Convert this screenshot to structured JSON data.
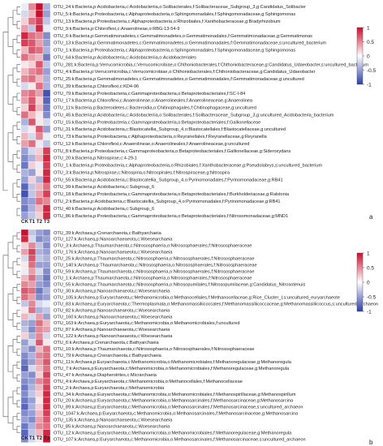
{
  "colors": {
    "low": "#2f3fa8",
    "mid": "#ffffff",
    "high": "#c8102e"
  },
  "panels": [
    {
      "label": "a",
      "legend_ticks": [
        "1",
        "0.5",
        "0",
        "-0.5",
        "-1"
      ],
      "columns": [
        "CK",
        "T1",
        "T2",
        "T3"
      ],
      "rows": [
        "OTU_24:k:Bacteria,p:Acidobacteria,c:Acidobacteriia,o:Solibacterales,f:Solibacteraceae_Subgroup_3,g:Candidatus_Solibacter",
        "OTU_5:k:Bacteria,p:Proteobacteria,c:Alphaproteobacteria,o:Sphingomonadales,f:Sphingomonadaceae,g:Sphingomonas",
        "OTU_13:k:Bacteria,p:Proteobacteria,c:Alphaproteobacteria,o:Rhizobiales,f:Xanthobacteraceae,g:Bradyrhizobium",
        "OTU_9:k:Bacteria,p:Chloroflexi,c:Anaerolineae,o:RBG-13-54-9",
        "OTU_6:k:Bacteria,p:Gemmatimonadetes,c:Gemmatimonadetes,o:Gemmatimonadales,f:Gemmatimonadaceae,g:Gemmatimonas",
        "OTU_13:k:Bacteria,p:Gemmatimonadetes,c:Gemmatimonadetes,o:Gemmatimonadales,f:Gemmatimonadaceae,s:uncultured_bacterium",
        "OTU_1:k:Bacteria,p:Proteobacteria,c:Alphaproteobacteria,o:Sphingomonadales,f:Sphingomonadaceae,g:Sphingomonas",
        "OTU_64:k:Bacteria,p:Acidobacteria,c:Acidobacteriia,o:Acidobacteriales",
        "OTU_281:k:Bacteria,p:Verrucomicrobia,c:Verrucomicrobiae,o:Chthoniobacterales,f:Chthoniobacteraceae,g:Candidatus_Udaeobacter,s:uncultured_bacterium",
        "OTU_4:k:Bacteria,p:Verrucomicrobia,c:Verrucomicrobiae,o:Chthoniobacterales,f:Chthoniobacteraceae,g:Candidatus_Udaeobacter",
        "OTU_25:k:Bacteria,p:Gemmatimonadetes,c:Gemmatimonadetes,o:Gemmatimonadales,f:Gemmatimonadaceae,g:uncultured",
        "OTU_39:k:Bacteria,p:Chloroflexi,c:KD4-96",
        "OTU_79:k:Bacteria,p:Proteobacteria,c:Gammaproteobacteria,o:Betaproteobacteriales,f:SC-I-84",
        "OTU_17:k:Bacteria,p:Chloroflexi,c:Anaerolineae,o:Anaerolineales,f:Anaerolineaceae,g:Anaerolinea",
        "OTU_11:k:Bacteria,p:Bacteroidetes,c:Bacteroidia,o:Chitinophagales,f:Chitinophagaceae,g:uncultured",
        "OTU_45:k:Bacteria,p:Acidobacteria,c:Acidobacteriia,o:Solibacterales,f:Solibacteraceae_Subgroup_3,g:uncultured_Acidobacteria_bacterium",
        "OTU_15:k:Bacteria,p:Proteobacteria,c:Gammaproteobacteria,o:Betaproteobacteriales,f:Gallionellaceae",
        "OTU_31:k:Bacteria,p:Acidobacteria,c:Blastocatellia_Subgroup_4,o:Blastocatellales,f:Blastocatellaceae,g:uncultured",
        "OTU_73:k:Bacteria,p:Proteobacteria,c:Alphaproteobacteria,o:Reyranellales,f:Reyranellaceae,g:Reyranella",
        "OTU_12:k:Bacteria,p:Chloroflexi,c:Anaerolineae,o:Anaerolineales,f:Anaerolineaceae,g:uncultured",
        "OTU_8:k:Bacteria,p:Proteobacteria,c:Gammaproteobacteria,o:Betaproteobacteriales,f:Gallionellaceae,g:Sideroxydans",
        "OTU_20:k:Bacteria,p:Nitrospirae,c:4-29-1",
        "OTU_1:k:Bacteria,p:Proteobacteria,c:Alphaproteobacteria,o:Rhizobiales,f:Xanthobacteraceae,g:Pseudolabrys,s:uncultured_bacterium",
        "OTU_3:k:Bacteria,p:Nitrospirae,c:Nitrospiria,o:Nitrospirales,f:Nitrospiraceae,g:Nitrospira",
        "OTU_55:k:Bacteria,p:Acidobacteria,c:Blastocatellia_Subgroup_4,o:Pyrinomonadales,f:Pyrinomonadaceae,g:RB41",
        "OTU_99:k:Bacteria,p:Acidobacteria,c:Subgroup_6",
        "OTU_18:k:Bacteria,p:Proteobacteria,c:Gammaproteobacteria,o:Betaproteobacteriales,f:Burkholderiaceae,g:Ralstonia",
        "OTU_2:k:Bacteria,p:Acidobacteria,c:Blastocatellia_Subgroup_4,o:Pyrinomonadales,f:Pyrinomonadaceae,g:RB41",
        "OTU_40:k:Bacteria,p:Acidobacteria,c:Subgroup_6",
        "OTU_86:k:Bacteria,p:Proteobacteria,c:Gammaproteobacteria,o:Betaproteobacteriales,f:Nitrosomonadaceae,g:MND1"
      ]
    },
    {
      "label": "b",
      "legend_ticks": [
        "1",
        "0.5",
        "0",
        "-0.5",
        "-1"
      ],
      "columns": [
        "CK",
        "T1",
        "T2",
        "T3"
      ],
      "rows": [
        "OTU_39:k:Archaea,p:Crenarchaeota,c:Bathyarchaeia",
        "OTU_127:k:Archaea,p:Nanoarchaeaeota,c:Woesearchaeia",
        "OTU_3:k:Archaea,p:Thaumarchaeota,c:Nitrososphaeria,o:Nitrososphaerales,f:Nitrososphaeraceae",
        "OTU_176:k:Archaea,p:Nanoarchaeaeota,c:Woesearchaeia",
        "OTU_25:k:Archaea,p:Thaumarchaeota,c:Nitrososphaeria,o:Nitrososphaerales,f:Nitrososphaeraceae",
        "OTU_140:k:Archaea,p:Thaumarchaeota,c:Nitrososphaeria,o:Nitrososphaerales,f:Nitrososphaeraceae",
        "OTU_59:k:Archaea,p:Thaumarchaeota,c:Nitrososphaeria,o:Nitrososphaerales,f:Nitrososphaeraceae",
        "OTU_1:k:Archaea,p:Thaumarchaeota,c:Nitrososphaeria,o:Nitrososphaerales,f:Nitrososphaeraceae",
        "OTU_55:k:Archaea,p:Thaumarchaeota,c:Nitrososphaeria,o:Nitrosopumilales,f:Nitrosopumilaceae,g:Candidatus_Nitrosotenuis",
        "OTU_30:k:Archaea,p:Nanoarchaeaeota,c:Woesearchaeia",
        "OTU_105:k:Archaea,p:Euryarchaeota,c:Methanomicrobia,o:Methanocellales,f:Methanocellaceae,g:Rice_Cluster_I,s:uncultured_euryarchaeote",
        "OTU_83:k:Archaea,p:Euryarchaeota,c:Thermoplasmata,o:Methanomassiliicoccales,f:Methanomassiliicoccaceae,g:Methanomassiliicoccus,s:uncultured_archaeon",
        "OTU_82:k:Archaea,p:Nanoarchaeaeota,c:Woesearchaeia",
        "OTU_160:k:Archaea,p:Nanoarchaeaeota,c:Woesearchaeia",
        "OTU_163:k:Archaea,p:Euryarchaeota,c:Methanomicrobia,o:Methanomicrobiales,f:uncultured",
        "OTU_87:k:Archaea,p:Nanoarchaeaeota,c:Woesearchaeia",
        "OTU_122:k:Archaea,p:Nanoarchaeaeota,c:Woesearchaeia",
        "OTU_6:k:Archaea,p:Crenarchaeota,c:Bathyarchaeia",
        "OTU_10:k:Archaea,p:Thaumarchaeota,c:Nitrososphaeria,o:Nitrososphaerales,f:Nitrososphaeraceae",
        "OTU_79:k:Archaea,p:Crenarchaeota,c:Bathyarchaeia",
        "OTU_11:k:Archaea,p:Euryarchaeota,c:Methanomicrobia,o:Methanomicrobiales,f:Methanoregulaceae,g:Methanoregula",
        "OTU_7:k:Archaea,p:Euryarchaeota,c:Methanomicrobia,o:Methanomicrobiales,f:Methanoregulaceae,g:Methanoregula",
        "OTU_47:k:Archaea,p:Diapherotrites,c:Micrarchaeia",
        "OTU_4:k:Archaea,p:Euryarchaeota,c:Methanomicrobia,o:Methanocellales,f:Methanocellaceae",
        "OTU_2:k:Archaea,p:Euryarchaeota,c:Methanomicrobia",
        "OTU_34:k:Archaea,p:Euryarchaeota,c:Methanomicrobia,o:Methanomicrobiales,f:Methanospirillaceae,g:Methanospirillum",
        "OTU_20:k:Archaea,p:Euryarchaeota,c:Methanomicrobia,o:Methanosarcinales,f:Methanosarcinaceae,g:Methanosarcina",
        "OTU_89:k:Archaea,p:Euryarchaeota,c:Methanomicrobia,o:Methanosarcinales,f:Methanosarcinaceae,s:uncultured_archaeon",
        "OTU_1047:k:Archaea,p:Euryarchaeota,c:Methanomicrobia,o:Methanosarcinales,f:Methanosarcinaceae,g:Methanosarcina",
        "OTU_135:k:Archaea,p:Nanoarchaeaeota,c:Woesearchaeia",
        "OTU_85:k:Archaea,p:Nanoarchaeaeota,c:Woesearchaeia",
        "OTU_12:k:Archaea,p:Euryarchaeota,c:Methanomicrobia,o:Methanomicrobiales,f:Methanoregulaceae,g:Methanoregula",
        "OTU_107:k:Archaea,p:Euryarchaeota,c:Methanomicrobia,o:Methanosarcinales,f:Methanosarcinaceae,s:uncultured_archaeon"
      ]
    }
  ],
  "chart_data": [
    {
      "type": "heatmap",
      "columns": [
        "CK",
        "T1",
        "T2",
        "T3"
      ],
      "color_scale": [
        -1,
        1
      ],
      "colorbar_ticks": [
        1,
        0.5,
        0,
        -0.5,
        -1
      ],
      "values": [
        [
          -0.1,
          0.5,
          1.0,
          -0.4
        ],
        [
          -0.2,
          0.3,
          1.0,
          -0.5
        ],
        [
          0.2,
          0.6,
          0.8,
          -0.3
        ],
        [
          0.4,
          -0.3,
          0.9,
          -0.1
        ],
        [
          0.9,
          0.6,
          0.5,
          -0.6
        ],
        [
          0.8,
          0.7,
          0.4,
          -0.5
        ],
        [
          0.3,
          0.7,
          0.6,
          -0.4
        ],
        [
          0.6,
          0.4,
          0.3,
          -0.7
        ],
        [
          0.1,
          0.2,
          0.7,
          -0.3
        ],
        [
          0.3,
          0.5,
          0.6,
          -0.5
        ],
        [
          0.5,
          0.6,
          0.3,
          -0.4
        ],
        [
          -0.2,
          0.1,
          0.6,
          -0.4
        ],
        [
          0.5,
          0.6,
          0.4,
          -0.9
        ],
        [
          0.4,
          0.7,
          0.2,
          -0.8
        ],
        [
          0.2,
          0.8,
          0.3,
          -0.7
        ],
        [
          0.6,
          0.3,
          0.1,
          -0.6
        ],
        [
          -0.4,
          0.7,
          0.1,
          -0.2
        ],
        [
          -0.2,
          0.1,
          0.7,
          -0.5
        ],
        [
          0.3,
          -0.2,
          0.5,
          -0.1
        ],
        [
          0.4,
          0.6,
          -0.1,
          -0.3
        ],
        [
          -0.5,
          -0.2,
          0.2,
          0.8
        ],
        [
          -0.6,
          -0.4,
          0.3,
          0.9
        ],
        [
          -0.7,
          0.2,
          -0.1,
          0.8
        ],
        [
          -0.4,
          -0.5,
          0.1,
          0.9
        ],
        [
          -0.5,
          0.2,
          -0.4,
          0.9
        ],
        [
          -0.8,
          -0.3,
          0.3,
          0.6
        ],
        [
          -0.9,
          -0.3,
          0.4,
          0.8
        ],
        [
          -0.6,
          -0.5,
          0.6,
          0.5
        ],
        [
          -0.7,
          -0.4,
          0.3,
          0.9
        ],
        [
          -0.5,
          -0.3,
          0.2,
          0.9
        ]
      ]
    },
    {
      "type": "heatmap",
      "columns": [
        "CK",
        "T1",
        "T2",
        "T3"
      ],
      "color_scale": [
        -1,
        1
      ],
      "colorbar_ticks": [
        1,
        0.5,
        0,
        -0.5,
        -1
      ],
      "values": [
        [
          1.0,
          -0.3,
          -0.5,
          -0.6
        ],
        [
          0.9,
          -0.2,
          -0.6,
          -0.5
        ],
        [
          0.2,
          0.5,
          -0.3,
          -0.6
        ],
        [
          0.4,
          0.8,
          -0.4,
          -0.5
        ],
        [
          -0.2,
          0.7,
          -0.3,
          -0.4
        ],
        [
          0.1,
          0.6,
          -0.5,
          -0.5
        ],
        [
          -0.1,
          0.4,
          -0.2,
          -0.6
        ],
        [
          0.3,
          0.6,
          -0.4,
          -0.7
        ],
        [
          0.5,
          0.4,
          -0.5,
          -0.6
        ],
        [
          0.7,
          0.6,
          -0.7,
          -0.4
        ],
        [
          0.6,
          0.4,
          -0.6,
          -0.5
        ],
        [
          -0.3,
          0.5,
          -0.2,
          -0.1
        ],
        [
          0.1,
          0.6,
          -0.4,
          -0.3
        ],
        [
          0.3,
          -0.2,
          0.4,
          -0.5
        ],
        [
          -0.4,
          -0.5,
          0.6,
          0.3
        ],
        [
          -0.3,
          -0.6,
          0.5,
          0.4
        ],
        [
          0.2,
          -0.4,
          0.5,
          -0.2
        ],
        [
          -0.5,
          -0.2,
          0.7,
          0.1
        ],
        [
          -0.4,
          -0.6,
          0.3,
          0.6
        ],
        [
          -0.6,
          -0.4,
          0.5,
          0.6
        ],
        [
          -0.7,
          -0.5,
          0.4,
          0.7
        ],
        [
          -0.8,
          -0.2,
          0.3,
          0.6
        ],
        [
          -0.5,
          -0.6,
          0.2,
          0.8
        ],
        [
          -0.6,
          -0.5,
          0.5,
          0.7
        ],
        [
          -0.7,
          -0.4,
          0.3,
          0.8
        ],
        [
          -0.6,
          -0.3,
          0.2,
          0.9
        ],
        [
          -0.7,
          -0.5,
          0.1,
          0.9
        ],
        [
          -0.8,
          -0.4,
          0.2,
          0.9
        ],
        [
          -0.6,
          -0.5,
          0.3,
          0.8
        ],
        [
          -0.5,
          -0.6,
          0.4,
          0.7
        ],
        [
          -0.7,
          -0.4,
          0.5,
          0.6
        ],
        [
          -0.8,
          -0.3,
          0.3,
          0.9
        ],
        [
          -0.6,
          -0.2,
          0.1,
          1.0
        ]
      ]
    }
  ]
}
